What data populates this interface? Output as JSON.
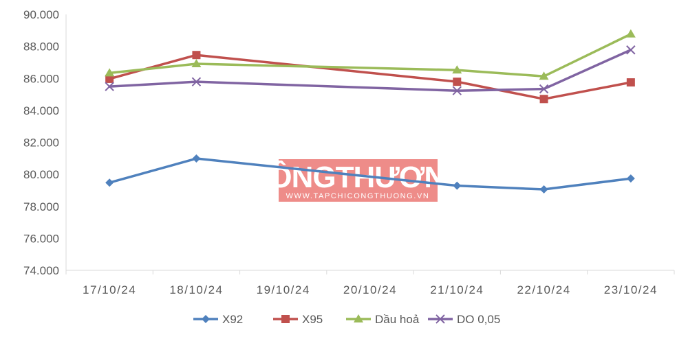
{
  "watermark": {
    "title": "CÔNGTHƯƠNG",
    "url": "WWW.TAPCHICONGTHUONG.VN"
  },
  "chart_data": {
    "type": "line",
    "title": "",
    "xlabel": "",
    "ylabel": "",
    "categories": [
      "17/10/24",
      "18/10/24",
      "19/10/24",
      "20/10/24",
      "21/10/24",
      "22/10/24",
      "23/10/24"
    ],
    "ylim": [
      74000,
      90000
    ],
    "yticks": [
      74000,
      76000,
      78000,
      80000,
      82000,
      84000,
      86000,
      88000,
      90000
    ],
    "ytick_labels": [
      "74.000",
      "76.000",
      "78.000",
      "80.000",
      "82.000",
      "84.000",
      "86.000",
      "88.000",
      "90.000"
    ],
    "grid": false,
    "legend_position": "bottom",
    "series": [
      {
        "name": "X92",
        "color": "#4f81bd",
        "marker": "diamond",
        "values": [
          79480,
          80990,
          null,
          null,
          79290,
          79060,
          79740
        ]
      },
      {
        "name": "X95",
        "color": "#c0504d",
        "marker": "square",
        "values": [
          85970,
          87460,
          null,
          null,
          85790,
          84710,
          85750
        ]
      },
      {
        "name": "Dầu hoả",
        "color": "#9bbb59",
        "marker": "triangle",
        "values": [
          86340,
          86910,
          null,
          null,
          86520,
          86130,
          88770
        ]
      },
      {
        "name": "DO 0,05",
        "color": "#8064a2",
        "marker": "x",
        "values": [
          85490,
          85790,
          null,
          null,
          85230,
          85340,
          87780
        ]
      }
    ]
  }
}
